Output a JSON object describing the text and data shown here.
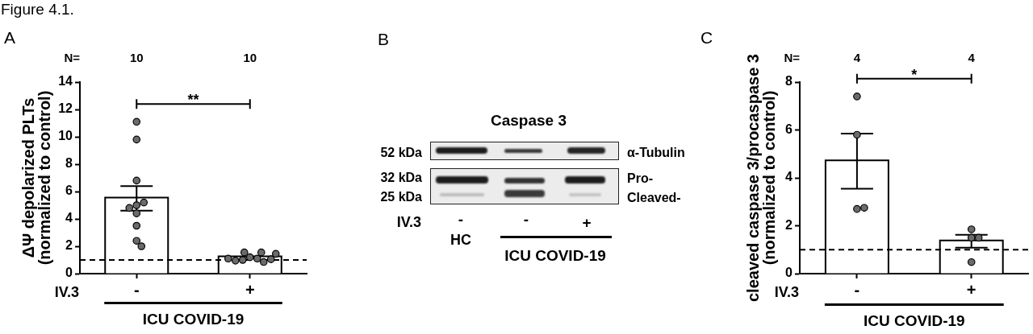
{
  "chart_data": [
    {
      "type": "bar",
      "title": "Figure 4.1.",
      "annotations": [
        "A",
        "N=",
        "10",
        "10",
        "**",
        "IV.3"
      ],
      "ylabel": "ΔΨ depolarized PLTs\n(normalized to control)",
      "xlabel": "ICU COVID-19",
      "categories": [
        "-",
        "+"
      ],
      "series": [
        {
          "type": "bar",
          "color": "#ffffff",
          "values": [
            5.5,
            1.2
          ],
          "errors": [
            0.9,
            null
          ]
        },
        {
          "type": "scatter",
          "color": "#6b6b6b",
          "x": [
            "-",
            "-",
            "-",
            "-",
            "-",
            "-",
            "-",
            "-",
            "-",
            "-",
            "+",
            "+",
            "+",
            "+",
            "+",
            "+",
            "+",
            "+",
            "+",
            "+"
          ],
          "values": [
            11.1,
            9.8,
            6.8,
            5.0,
            5.2,
            4.8,
            4.4,
            3.5,
            2.4,
            2.0,
            1.2,
            1.1,
            1.0,
            1.55,
            0.85,
            0.95,
            1.55,
            1.05,
            1.1,
            1.45
          ]
        }
      ],
      "ylim": [
        0,
        14
      ],
      "yticks": [
        0,
        2,
        4,
        6,
        8,
        10,
        12,
        14
      ],
      "ref_lines": [
        {
          "axis": "y",
          "value": 1,
          "line_style": "dashed",
          "color": "#000000"
        }
      ],
      "marker": "circle"
    },
    {
      "type": "other",
      "title": "Caspase 3",
      "annotations": [
        "B",
        "52 kDa",
        "32 kDa",
        "25 kDa",
        "α-Tubulin",
        "Pro-",
        "Cleaved-",
        "IV.3",
        "-",
        "-",
        "+",
        "HC"
      ],
      "xlabel": "ICU COVID-19"
    },
    {
      "type": "bar",
      "annotations": [
        "C",
        "N=",
        "4",
        "4",
        "*",
        "IV.3"
      ],
      "ylabel": "cleaved caspase 3/procaspase 3\n(normalized to control)",
      "xlabel": "ICU COVID-19",
      "categories": [
        "-",
        "+"
      ],
      "series": [
        {
          "type": "bar",
          "color": "#ffffff",
          "values": [
            4.7,
            1.35
          ],
          "errors": [
            1.15,
            0.27
          ]
        },
        {
          "type": "scatter",
          "color": "#6b6b6b",
          "x": [
            "-",
            "-",
            "-",
            "-",
            "+",
            "+",
            "+",
            "+"
          ],
          "values": [
            7.4,
            5.8,
            2.7,
            2.75,
            1.5,
            1.5,
            1.85,
            0.48
          ]
        }
      ],
      "ylim": [
        0,
        8
      ],
      "yticks": [
        0,
        2,
        4,
        6,
        8
      ],
      "ref_lines": [
        {
          "axis": "y",
          "value": 1,
          "line_style": "dashed",
          "color": "#000000"
        }
      ],
      "marker": "circle"
    }
  ]
}
